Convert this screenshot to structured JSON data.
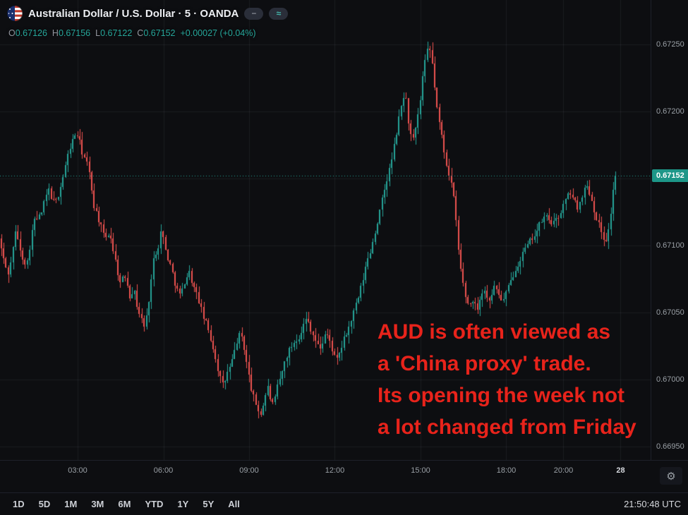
{
  "header": {
    "title": "Australian Dollar / U.S. Dollar · 5 · OANDA",
    "buttons": [
      {
        "glyph": "−"
      },
      {
        "glyph": "≈"
      }
    ]
  },
  "ohlc": {
    "open_label": "O",
    "open": "0.67126",
    "high_label": "H",
    "high": "0.67156",
    "low_label": "L",
    "low": "0.67122",
    "close_label": "C",
    "close": "0.67152",
    "change": "+0.00027 (+0.04%)"
  },
  "annotation": {
    "lines": [
      "AUD is often viewed as",
      "a 'China proxy' trade.",
      "Its opening the week not",
      "a lot changed from Friday"
    ]
  },
  "toolbar": {
    "ranges": [
      "1D",
      "5D",
      "1M",
      "3M",
      "6M",
      "YTD",
      "1Y",
      "5Y",
      "All"
    ],
    "clock": "21:50:48 UTC"
  },
  "colors": {
    "up": "#26a69a",
    "down": "#ef5350",
    "grid": "rgba(151,160,180,0.10)",
    "badge_bg": "#1d9688",
    "annotation_red": "#e8231b"
  },
  "chart_data": {
    "type": "candlestick",
    "title": "AUD/USD · 5 minute · OANDA",
    "interval_minutes": 5,
    "last_price": 0.67152,
    "last_price_label": "0.67152",
    "ohlc_current": {
      "open": 0.67126,
      "high": 0.67156,
      "low": 0.67122,
      "close": 0.67152,
      "change": 0.00027,
      "change_pct": 0.04
    },
    "x_axis": {
      "range_minutes": [
        17,
        1383
      ],
      "ticks": [
        {
          "minutes": 180,
          "label": "03:00"
        },
        {
          "minutes": 360,
          "label": "06:00"
        },
        {
          "minutes": 540,
          "label": "09:00"
        },
        {
          "minutes": 720,
          "label": "12:00"
        },
        {
          "minutes": 900,
          "label": "15:00"
        },
        {
          "minutes": 1080,
          "label": "18:00"
        },
        {
          "minutes": 1200,
          "label": "20:00"
        },
        {
          "minutes": 1320,
          "label": "28",
          "emphasis": true
        }
      ]
    },
    "y_axis": {
      "range": [
        0.6694,
        0.67283
      ],
      "ticks": [
        {
          "value": 0.6725,
          "label": "0.67250"
        },
        {
          "value": 0.672,
          "label": "0.67200"
        },
        {
          "value": 0.6715,
          "label": "0.67150"
        },
        {
          "value": 0.671,
          "label": "0.67100"
        },
        {
          "value": 0.6705,
          "label": "0.67050"
        },
        {
          "value": 0.67,
          "label": "0.67000"
        },
        {
          "value": 0.6695,
          "label": "0.66950"
        }
      ]
    },
    "price_path": [
      [
        17,
        0.67105
      ],
      [
        30,
        0.67085
      ],
      [
        39,
        0.67078
      ],
      [
        47,
        0.671
      ],
      [
        54,
        0.67112
      ],
      [
        62,
        0.67095
      ],
      [
        76,
        0.67085
      ],
      [
        90,
        0.67118
      ],
      [
        105,
        0.67122
      ],
      [
        121,
        0.67142
      ],
      [
        135,
        0.6713
      ],
      [
        150,
        0.67148
      ],
      [
        165,
        0.67172
      ],
      [
        180,
        0.67185
      ],
      [
        192,
        0.6717
      ],
      [
        205,
        0.67158
      ],
      [
        217,
        0.6713
      ],
      [
        228,
        0.67118
      ],
      [
        239,
        0.67105
      ],
      [
        250,
        0.6711
      ],
      [
        258,
        0.67095
      ],
      [
        272,
        0.67072
      ],
      [
        284,
        0.67078
      ],
      [
        291,
        0.67062
      ],
      [
        300,
        0.67068
      ],
      [
        309,
        0.67052
      ],
      [
        317,
        0.67045
      ],
      [
        324,
        0.67038
      ],
      [
        332,
        0.6706
      ],
      [
        343,
        0.67092
      ],
      [
        352,
        0.671
      ],
      [
        358,
        0.67112
      ],
      [
        368,
        0.67095
      ],
      [
        380,
        0.67082
      ],
      [
        390,
        0.67068
      ],
      [
        399,
        0.67062
      ],
      [
        408,
        0.67075
      ],
      [
        417,
        0.6708
      ],
      [
        427,
        0.67068
      ],
      [
        436,
        0.6706
      ],
      [
        445,
        0.67048
      ],
      [
        454,
        0.6704
      ],
      [
        464,
        0.67028
      ],
      [
        473,
        0.67015
      ],
      [
        481,
        0.67002
      ],
      [
        488,
        0.66995
      ],
      [
        497,
        0.67005
      ],
      [
        506,
        0.67012
      ],
      [
        516,
        0.67028
      ],
      [
        525,
        0.67035
      ],
      [
        533,
        0.67022
      ],
      [
        539,
        0.67008
      ],
      [
        546,
        0.66995
      ],
      [
        553,
        0.66985
      ],
      [
        561,
        0.66978
      ],
      [
        568,
        0.66974
      ],
      [
        576,
        0.66988
      ],
      [
        583,
        0.66995
      ],
      [
        590,
        0.6698
      ],
      [
        597,
        0.66985
      ],
      [
        604,
        0.66998
      ],
      [
        610,
        0.67002
      ],
      [
        618,
        0.67015
      ],
      [
        627,
        0.67022
      ],
      [
        637,
        0.67028
      ],
      [
        647,
        0.67032
      ],
      [
        656,
        0.6704
      ],
      [
        664,
        0.67046
      ],
      [
        672,
        0.67038
      ],
      [
        681,
        0.6703
      ],
      [
        690,
        0.67022
      ],
      [
        697,
        0.67028
      ],
      [
        703,
        0.67035
      ],
      [
        710,
        0.6703
      ],
      [
        718,
        0.67022
      ],
      [
        725,
        0.67012
      ],
      [
        733,
        0.6702
      ],
      [
        740,
        0.67028
      ],
      [
        748,
        0.67035
      ],
      [
        755,
        0.67042
      ],
      [
        764,
        0.67052
      ],
      [
        773,
        0.67062
      ],
      [
        782,
        0.67075
      ],
      [
        790,
        0.67088
      ],
      [
        799,
        0.67098
      ],
      [
        808,
        0.67112
      ],
      [
        817,
        0.67125
      ],
      [
        826,
        0.6714
      ],
      [
        834,
        0.67152
      ],
      [
        841,
        0.67162
      ],
      [
        849,
        0.67178
      ],
      [
        856,
        0.67192
      ],
      [
        864,
        0.67208
      ],
      [
        870,
        0.67215
      ],
      [
        876,
        0.67195
      ],
      [
        882,
        0.67182
      ],
      [
        888,
        0.67178
      ],
      [
        895,
        0.67192
      ],
      [
        901,
        0.67205
      ],
      [
        907,
        0.67225
      ],
      [
        913,
        0.67238
      ],
      [
        919,
        0.67248
      ],
      [
        925,
        0.67242
      ],
      [
        930,
        0.67225
      ],
      [
        936,
        0.67205
      ],
      [
        941,
        0.67192
      ],
      [
        947,
        0.67182
      ],
      [
        953,
        0.67168
      ],
      [
        959,
        0.67158
      ],
      [
        965,
        0.6715
      ],
      [
        971,
        0.67138
      ],
      [
        977,
        0.67118
      ],
      [
        983,
        0.67092
      ],
      [
        990,
        0.67075
      ],
      [
        997,
        0.67062
      ],
      [
        1004,
        0.67055
      ],
      [
        1012,
        0.6706
      ],
      [
        1020,
        0.67052
      ],
      [
        1028,
        0.67062
      ],
      [
        1036,
        0.67068
      ],
      [
        1044,
        0.67058
      ],
      [
        1052,
        0.67065
      ],
      [
        1060,
        0.6707
      ],
      [
        1068,
        0.67062
      ],
      [
        1076,
        0.67058
      ],
      [
        1083,
        0.67065
      ],
      [
        1091,
        0.67072
      ],
      [
        1100,
        0.67082
      ],
      [
        1109,
        0.67088
      ],
      [
        1118,
        0.67095
      ],
      [
        1128,
        0.671
      ],
      [
        1137,
        0.67106
      ],
      [
        1146,
        0.6711
      ],
      [
        1156,
        0.67118
      ],
      [
        1165,
        0.67122
      ],
      [
        1175,
        0.67118
      ],
      [
        1184,
        0.67116
      ],
      [
        1192,
        0.67122
      ],
      [
        1200,
        0.67128
      ],
      [
        1209,
        0.67135
      ],
      [
        1217,
        0.6714
      ],
      [
        1226,
        0.67132
      ],
      [
        1234,
        0.67128
      ],
      [
        1242,
        0.67138
      ],
      [
        1251,
        0.67145
      ],
      [
        1259,
        0.67138
      ],
      [
        1266,
        0.67128
      ],
      [
        1273,
        0.6712
      ],
      [
        1280,
        0.67112
      ],
      [
        1287,
        0.67106
      ],
      [
        1294,
        0.67104
      ],
      [
        1300,
        0.67118
      ],
      [
        1305,
        0.67135
      ],
      [
        1310,
        0.67152
      ]
    ]
  }
}
